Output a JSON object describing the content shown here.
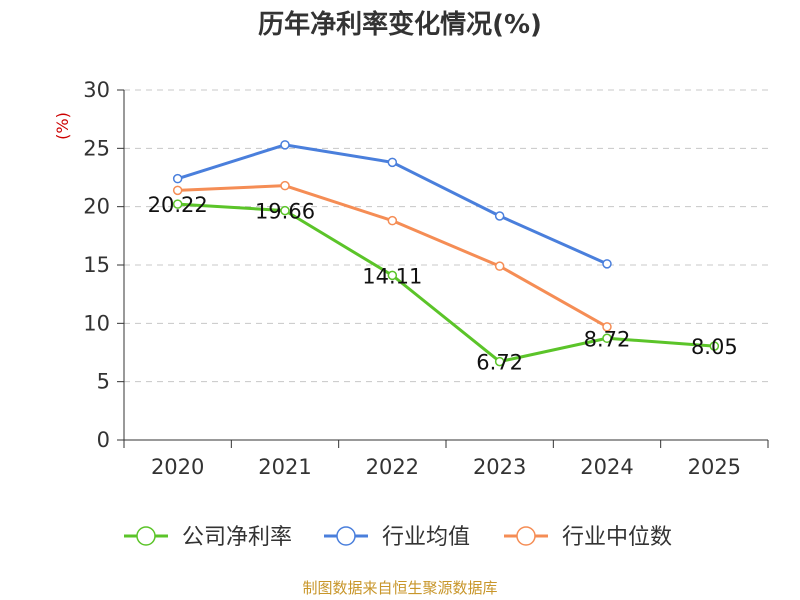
{
  "chart_data": {
    "type": "line",
    "title": "历年净利率变化情况(%)",
    "ylabel": "(%)",
    "xlabel": "",
    "ylim": [
      0,
      30
    ],
    "yticks": [
      0,
      5,
      10,
      15,
      20,
      25,
      30
    ],
    "categories": [
      "2020",
      "2021",
      "2022",
      "2023",
      "2024",
      "2025"
    ],
    "grid": true,
    "legend_position": "bottom",
    "series": [
      {
        "name": "公司净利率",
        "color": "#5bc429",
        "show_labels": true,
        "labels": [
          "20.22",
          "19.66",
          "14.11",
          "6.72",
          "8.72",
          "8.05"
        ],
        "values": [
          20.22,
          19.66,
          14.11,
          6.72,
          8.72,
          8.05
        ]
      },
      {
        "name": "行业均值",
        "color": "#4a7fdc",
        "show_labels": false,
        "values": [
          22.4,
          25.3,
          23.8,
          19.2,
          15.1,
          null
        ]
      },
      {
        "name": "行业中位数",
        "color": "#f58d55",
        "show_labels": false,
        "values": [
          21.4,
          21.8,
          18.8,
          14.9,
          9.7,
          null
        ]
      }
    ]
  },
  "footer": "制图数据来自恒生聚源数据库",
  "colors": {
    "axis": "#333333",
    "grid": "#c8c8c8",
    "ylabel": "#cc0000"
  }
}
